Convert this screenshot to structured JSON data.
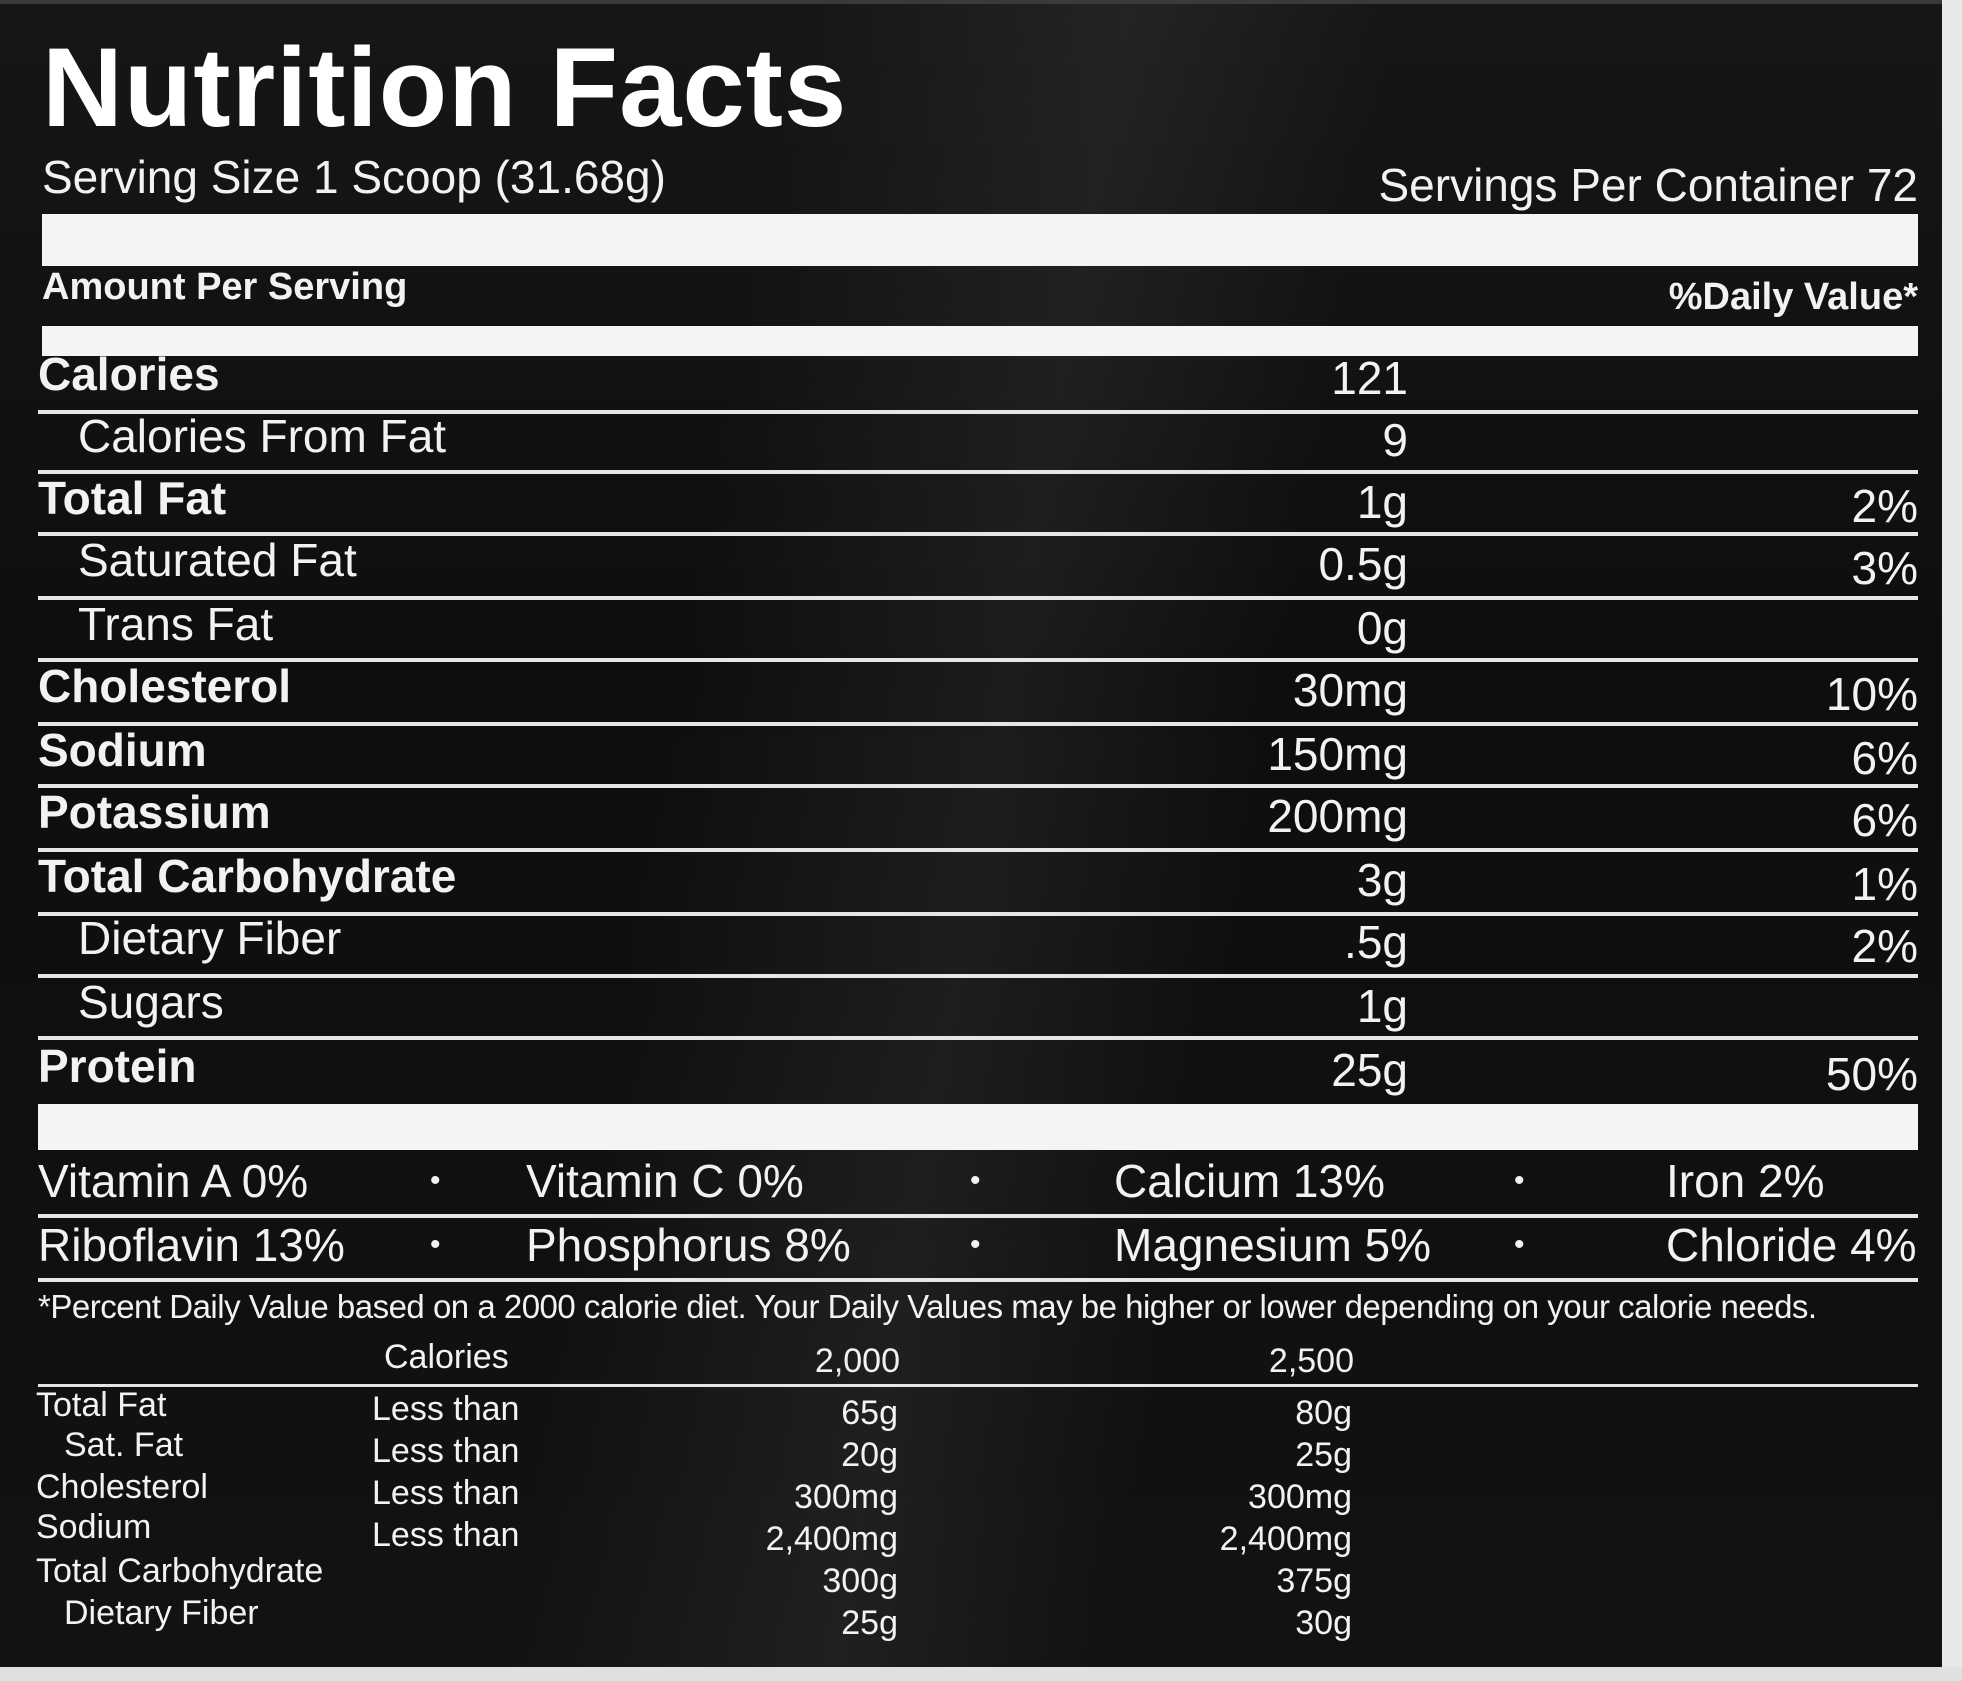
{
  "title": "Nutrition Facts",
  "serving_size": "Serving Size 1 Scoop (31.68g)",
  "servings_per_container": "Servings Per Container 72",
  "amount_per_serving": "Amount Per Serving",
  "daily_value_header": "%Daily Value*",
  "nutrients": [
    {
      "name": "Calories",
      "amount": "121",
      "dv": ""
    },
    {
      "name": "Calories From Fat",
      "amount": "9",
      "dv": ""
    },
    {
      "name": "Total Fat",
      "amount": "1g",
      "dv": "2%"
    },
    {
      "name": "Saturated Fat",
      "amount": "0.5g",
      "dv": "3%"
    },
    {
      "name": "Trans Fat",
      "amount": "0g",
      "dv": ""
    },
    {
      "name": "Cholesterol",
      "amount": "30mg",
      "dv": "10%"
    },
    {
      "name": "Sodium",
      "amount": "150mg",
      "dv": "6%"
    },
    {
      "name": "Potassium",
      "amount": "200mg",
      "dv": "6%"
    },
    {
      "name": "Total Carbohydrate",
      "amount": "3g",
      "dv": "1%"
    },
    {
      "name": "Dietary Fiber",
      "amount": ".5g",
      "dv": "2%"
    },
    {
      "name": "Sugars",
      "amount": "1g",
      "dv": ""
    },
    {
      "name": "Protein",
      "amount": "25g",
      "dv": "50%"
    }
  ],
  "vitamins": [
    [
      "Vitamin A 0%",
      "Vitamin C 0%",
      "Calcium 13%",
      "Iron 2%"
    ],
    [
      "Riboflavin 13%",
      "Phosphorus 8%",
      "Magnesium 5%",
      "Chloride 4%"
    ]
  ],
  "bullet": "•",
  "footnote": "*Percent Daily Value based on a 2000 calorie diet. Your Daily Values may be higher or lower depending on your calorie needs.",
  "footnote_table": {
    "header": {
      "label": "Calories",
      "col1": "2,000",
      "col2": "2,500"
    },
    "rows": [
      {
        "name": "Total Fat",
        "qualifier": "Less than",
        "col1": "65g",
        "col2": "80g"
      },
      {
        "name": "Sat. Fat",
        "qualifier": "Less than",
        "col1": "20g",
        "col2": "25g"
      },
      {
        "name": "Cholesterol",
        "qualifier": "Less than",
        "col1": "300mg",
        "col2": "300mg"
      },
      {
        "name": "Sodium",
        "qualifier": "Less than",
        "col1": "2,400mg",
        "col2": "2,400mg"
      },
      {
        "name": "Total Carbohydrate",
        "qualifier": "",
        "col1": "300g",
        "col2": "375g"
      },
      {
        "name": "Dietary Fiber",
        "qualifier": "",
        "col1": "25g",
        "col2": "30g"
      }
    ]
  }
}
